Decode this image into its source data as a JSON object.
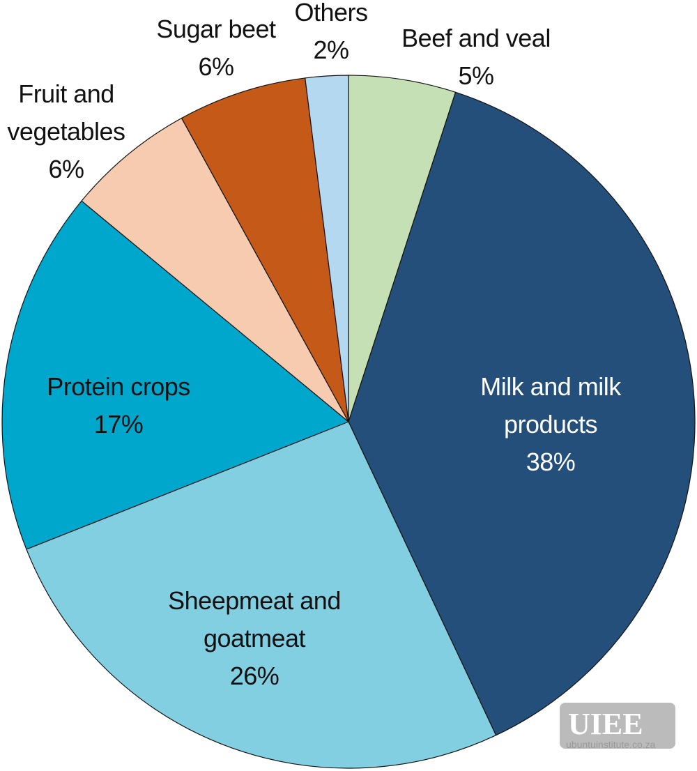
{
  "chart_data": {
    "type": "pie",
    "categories": [
      "Beef and veal",
      "Milk and milk products",
      "Sheepmeat and goatmeat",
      "Protein crops",
      "Fruit and vegetables",
      "Sugar beet",
      "Others"
    ],
    "values": [
      5,
      38,
      26,
      17,
      6,
      6,
      2
    ],
    "value_labels": [
      "5%",
      "38%",
      "26%",
      "17%",
      "6%",
      "6%",
      "2%"
    ],
    "colors": [
      "#c5e0b4",
      "#244f7a",
      "#83cfe2",
      "#00a7cc",
      "#f6cbb0",
      "#c55a18",
      "#b3d8f0"
    ]
  },
  "logo_text": "UIEE",
  "logo_url": "ubuntuinstitute.co.za"
}
